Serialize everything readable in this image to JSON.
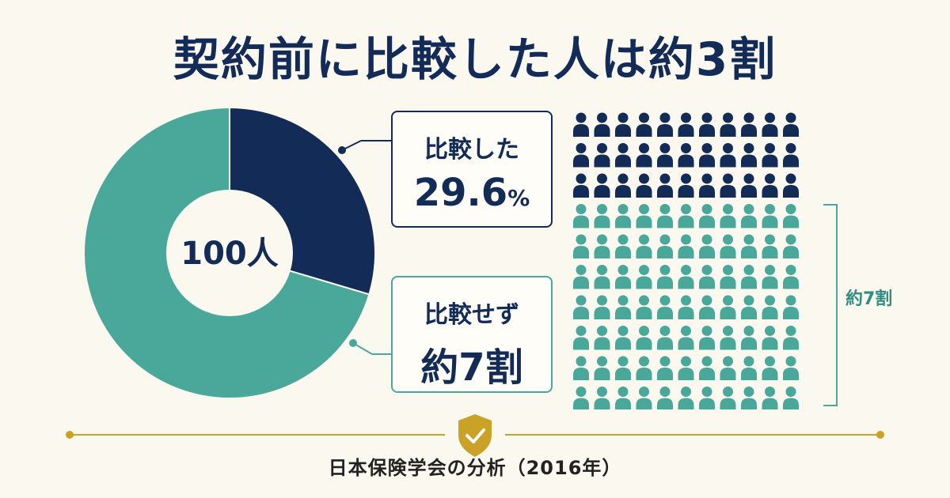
{
  "title": "契約前に比較した人は約3割",
  "colors": {
    "compared": "#132b57",
    "not_compared": "#4aa89a",
    "accent_gold": "#c9a227",
    "background": "#fbf8ef"
  },
  "chart_data": {
    "type": "pie",
    "title": "契約前に比較した人は約3割",
    "center_label": "100人",
    "slices": [
      {
        "name": "比較した",
        "value": 29.6,
        "display": "29.6",
        "unit": "%"
      },
      {
        "name": "比較せず",
        "value": 70.4,
        "display": "約7割"
      }
    ]
  },
  "pictogram": {
    "rows": 10,
    "cols": 11,
    "compared_rows": 3,
    "icon": "person-icon",
    "bracket_label": "約7割"
  },
  "callouts": {
    "compared": {
      "label": "比較した",
      "value": "29.6",
      "unit": "%"
    },
    "not_compared": {
      "label": "比較せず",
      "value": "約7割"
    }
  },
  "footer": {
    "icon": "shield-check-icon",
    "source": "日本保険学会の分析（2016年）"
  }
}
